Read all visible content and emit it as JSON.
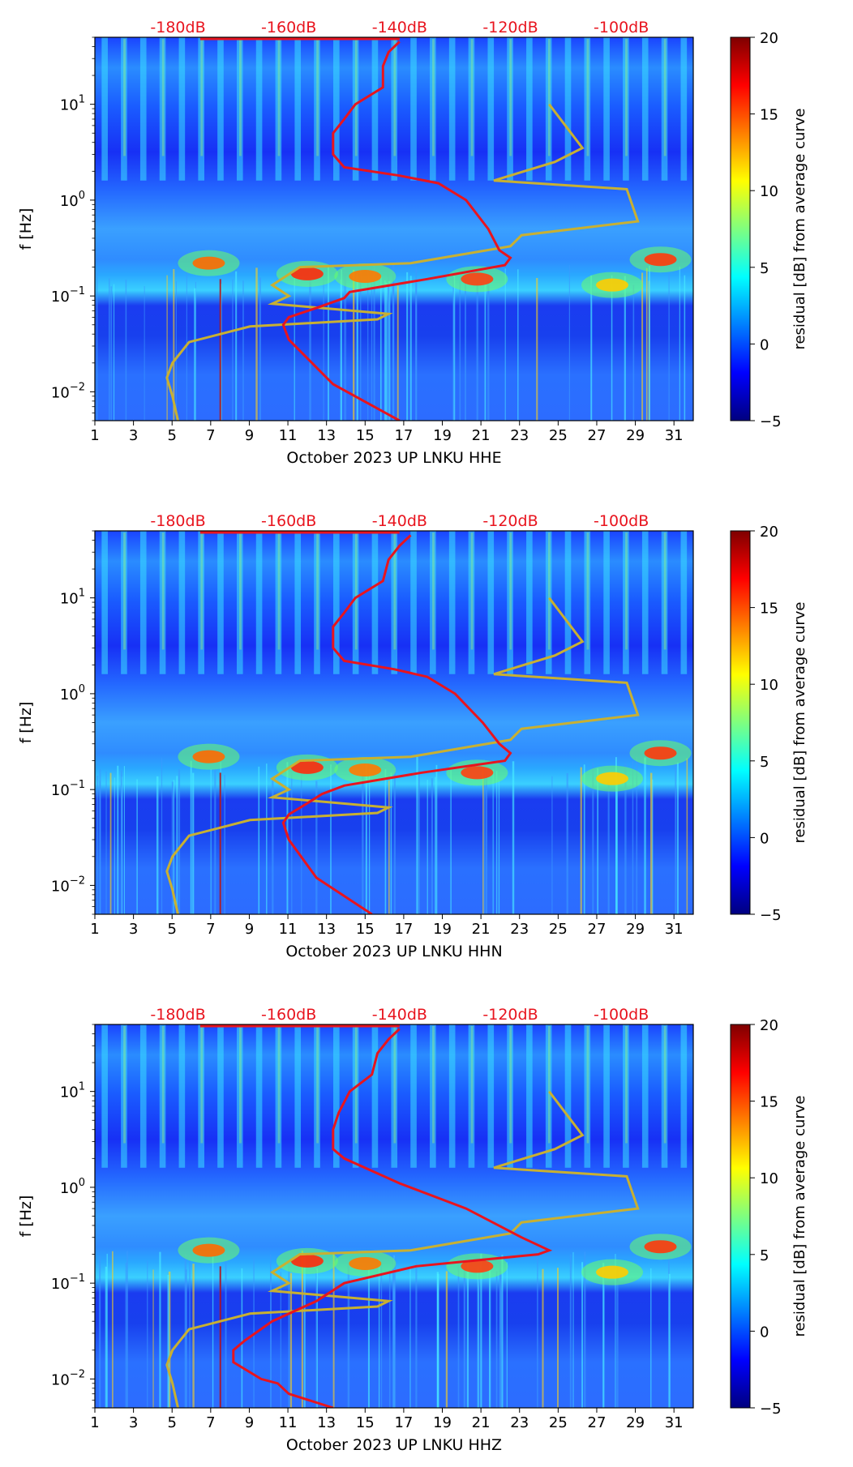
{
  "figure": {
    "colorbar_label": "residual [dB] from average curve",
    "colorbar_ticks": [
      "20",
      "15",
      "10",
      "5",
      "0",
      "−5"
    ],
    "colorbar_values": [
      20,
      15,
      10,
      5,
      0,
      -5
    ],
    "colormap": [
      "#00007f",
      "#0000ff",
      "#007fff",
      "#00ffff",
      "#7fff7f",
      "#ffff00",
      "#ff7f00",
      "#ff0000",
      "#7f0000"
    ],
    "ylabel": "f [Hz]",
    "top_labels": [
      "-180dB",
      "-160dB",
      "-140dB",
      "-120dB",
      "-100dB"
    ],
    "x_tick_labels": [
      "1",
      "3",
      "5",
      "7",
      "9",
      "11",
      "13",
      "15",
      "17",
      "19",
      "21",
      "23",
      "25",
      "27",
      "29",
      "31"
    ],
    "y_tick_labels": [
      "10",
      "10",
      "10",
      "10"
    ],
    "y_tick_exponents": [
      "1",
      "0",
      "−1",
      "−2"
    ],
    "noise_model_color": "#c8b032",
    "psd_curve_color": "#e8141e",
    "top_label_color": "#e8141e"
  },
  "chart_data": [
    {
      "type": "heatmap",
      "title": "October 2023 UP LNKU  HHE",
      "xlabel": "October 2023 UP LNKU  HHE",
      "ylabel": "f [Hz]",
      "x_range": [
        1,
        32
      ],
      "y_range_hz": [
        0.005,
        50
      ],
      "y_scale": "log",
      "color_range_db": [
        -5,
        20
      ],
      "top_axis_db": [
        -180,
        -160,
        -140,
        -120,
        -100
      ],
      "noise_model_curve": {
        "name": "noise model",
        "db": [
          -180,
          -181,
          -182,
          -181,
          -178,
          -167,
          -144,
          -142,
          -163,
          -160,
          -163,
          -158,
          -138,
          -120,
          -118,
          -97,
          -99,
          -123,
          -112,
          -107,
          -113
        ],
        "f_hz": [
          0.005,
          0.009,
          0.014,
          0.02,
          0.033,
          0.048,
          0.057,
          0.065,
          0.083,
          0.1,
          0.13,
          0.2,
          0.22,
          0.33,
          0.43,
          0.6,
          1.3,
          1.6,
          2.5,
          3.5,
          10
        ]
      },
      "psd_curve": {
        "name": "median PSD",
        "db": [
          -140,
          -152,
          -160,
          -161,
          -160,
          -155,
          -150,
          -149,
          -135,
          -121,
          -120,
          -122,
          -124,
          -128,
          -133,
          -140,
          -150,
          -152,
          -152,
          -150,
          -148,
          -143,
          -143,
          -142,
          -140
        ],
        "f_hz": [
          0.005,
          0.012,
          0.035,
          0.05,
          0.06,
          0.075,
          0.095,
          0.11,
          0.15,
          0.21,
          0.25,
          0.3,
          0.5,
          1,
          1.5,
          1.8,
          2.2,
          3,
          5,
          7,
          10,
          15,
          25,
          35,
          45
        ]
      }
    },
    {
      "type": "heatmap",
      "title": "October 2023 UP LNKU  HHN",
      "xlabel": "October 2023 UP LNKU  HHN",
      "ylabel": "f [Hz]",
      "x_range": [
        1,
        32
      ],
      "y_range_hz": [
        0.005,
        50
      ],
      "y_scale": "log",
      "color_range_db": [
        -5,
        20
      ],
      "top_axis_db": [
        -180,
        -160,
        -140,
        -120,
        -100
      ],
      "noise_model_curve": {
        "name": "noise model",
        "db": [
          -180,
          -181,
          -182,
          -181,
          -178,
          -167,
          -144,
          -142,
          -163,
          -160,
          -163,
          -158,
          -138,
          -120,
          -118,
          -97,
          -99,
          -123,
          -112,
          -107,
          -113
        ],
        "f_hz": [
          0.005,
          0.009,
          0.014,
          0.02,
          0.033,
          0.048,
          0.057,
          0.065,
          0.083,
          0.1,
          0.13,
          0.2,
          0.22,
          0.33,
          0.43,
          0.6,
          1.3,
          1.6,
          2.5,
          3.5,
          10
        ]
      },
      "psd_curve": {
        "name": "median PSD",
        "db": [
          -145,
          -155,
          -160,
          -161,
          -160,
          -157,
          -154,
          -150,
          -136,
          -121,
          -120,
          -122,
          -125,
          -130,
          -135,
          -141,
          -150,
          -152,
          -152,
          -150,
          -148,
          -143,
          -142,
          -140,
          -138
        ],
        "f_hz": [
          0.005,
          0.012,
          0.03,
          0.045,
          0.055,
          0.07,
          0.09,
          0.11,
          0.15,
          0.2,
          0.24,
          0.3,
          0.5,
          1,
          1.5,
          1.8,
          2.2,
          3,
          5,
          7,
          10,
          15,
          25,
          35,
          45
        ]
      }
    },
    {
      "type": "heatmap",
      "title": "October 2023 UP LNKU  HHZ",
      "xlabel": "October 2023 UP LNKU  HHZ",
      "ylabel": "f [Hz]",
      "x_range": [
        1,
        32
      ],
      "y_range_hz": [
        0.005,
        50
      ],
      "y_scale": "log",
      "color_range_db": [
        -5,
        20
      ],
      "top_axis_db": [
        -180,
        -160,
        -140,
        -120,
        -100
      ],
      "noise_model_curve": {
        "name": "noise model",
        "db": [
          -180,
          -181,
          -182,
          -181,
          -178,
          -167,
          -144,
          -142,
          -163,
          -160,
          -163,
          -158,
          -138,
          -120,
          -118,
          -97,
          -99,
          -123,
          -112,
          -107,
          -113
        ],
        "f_hz": [
          0.005,
          0.009,
          0.014,
          0.02,
          0.033,
          0.048,
          0.057,
          0.065,
          0.083,
          0.1,
          0.13,
          0.2,
          0.22,
          0.33,
          0.43,
          0.6,
          1.3,
          1.6,
          2.5,
          3.5,
          10
        ]
      },
      "psd_curve": {
        "name": "median PSD",
        "db": [
          -152,
          -160,
          -162,
          -165,
          -170,
          -170,
          -168,
          -163,
          -155,
          -150,
          -137,
          -115,
          -113,
          -118,
          -128,
          -140,
          -150,
          -152,
          -152,
          -151,
          -149,
          -145,
          -144,
          -142,
          -140
        ],
        "f_hz": [
          0.005,
          0.007,
          0.009,
          0.01,
          0.015,
          0.02,
          0.025,
          0.04,
          0.065,
          0.1,
          0.15,
          0.2,
          0.22,
          0.3,
          0.6,
          1.1,
          2,
          2.5,
          4,
          6,
          10,
          15,
          25,
          35,
          45
        ]
      }
    }
  ]
}
